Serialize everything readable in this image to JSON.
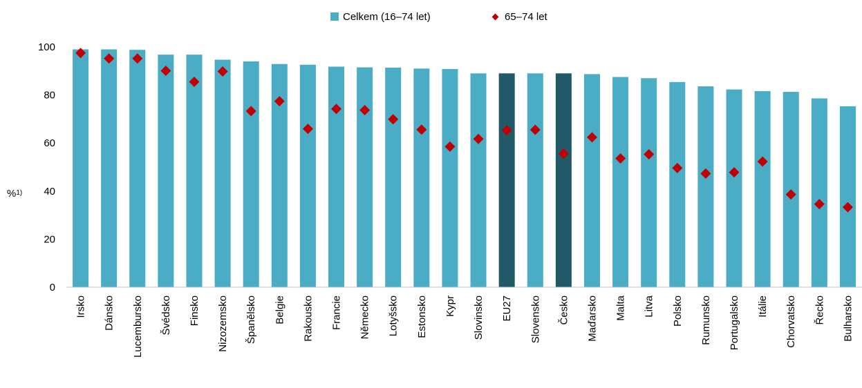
{
  "chart_data": {
    "type": "bar",
    "title": "",
    "xlabel": "",
    "ylabel": "%",
    "ylabel_sup": "1)",
    "ylim": [
      0,
      100
    ],
    "yticks": [
      0,
      20,
      40,
      60,
      80,
      100
    ],
    "grid": false,
    "legend_position": "top-center",
    "categories": [
      "Irsko",
      "Dánsko",
      "Lucembursko",
      "Švédsko",
      "Finsko",
      "Nizozemsko",
      "Španělsko",
      "Belgie",
      "Rakousko",
      "Francie",
      "Německo",
      "Lotyšsko",
      "Estonsko",
      "Kypr",
      "Slovinsko",
      "EU27",
      "Slovensko",
      "Česko",
      "Maďarsko",
      "Malta",
      "Litva",
      "Polsko",
      "Rumunsko",
      "Portugalsko",
      "Itálie",
      "Chorvatsko",
      "Řecko",
      "Bulharsko"
    ],
    "highlighted_categories": [
      "EU27",
      "Česko"
    ],
    "series": [
      {
        "name": "Celkem (16–74 let)",
        "type": "bar",
        "color": "#4BACC6",
        "highlight_color": "#215968",
        "values": [
          99.0,
          99.0,
          98.8,
          96.8,
          96.8,
          94.7,
          94.0,
          92.9,
          92.6,
          91.8,
          91.5,
          91.4,
          91.0,
          90.8,
          89.0,
          89.0,
          89.0,
          89.0,
          88.7,
          87.5,
          87.0,
          85.4,
          83.6,
          82.3,
          81.6,
          81.3,
          78.6,
          75.3
        ]
      },
      {
        "name": "65–74 let",
        "type": "scatter",
        "marker": "diamond",
        "color": "#C00000",
        "values": [
          97.5,
          95.2,
          95.2,
          90.1,
          85.5,
          89.8,
          73.3,
          77.4,
          65.9,
          74.2,
          73.7,
          69.9,
          65.6,
          58.5,
          61.7,
          65.3,
          65.5,
          55.6,
          62.4,
          53.6,
          55.3,
          49.6,
          47.3,
          47.8,
          52.3,
          38.6,
          34.6,
          33.3
        ]
      }
    ]
  }
}
